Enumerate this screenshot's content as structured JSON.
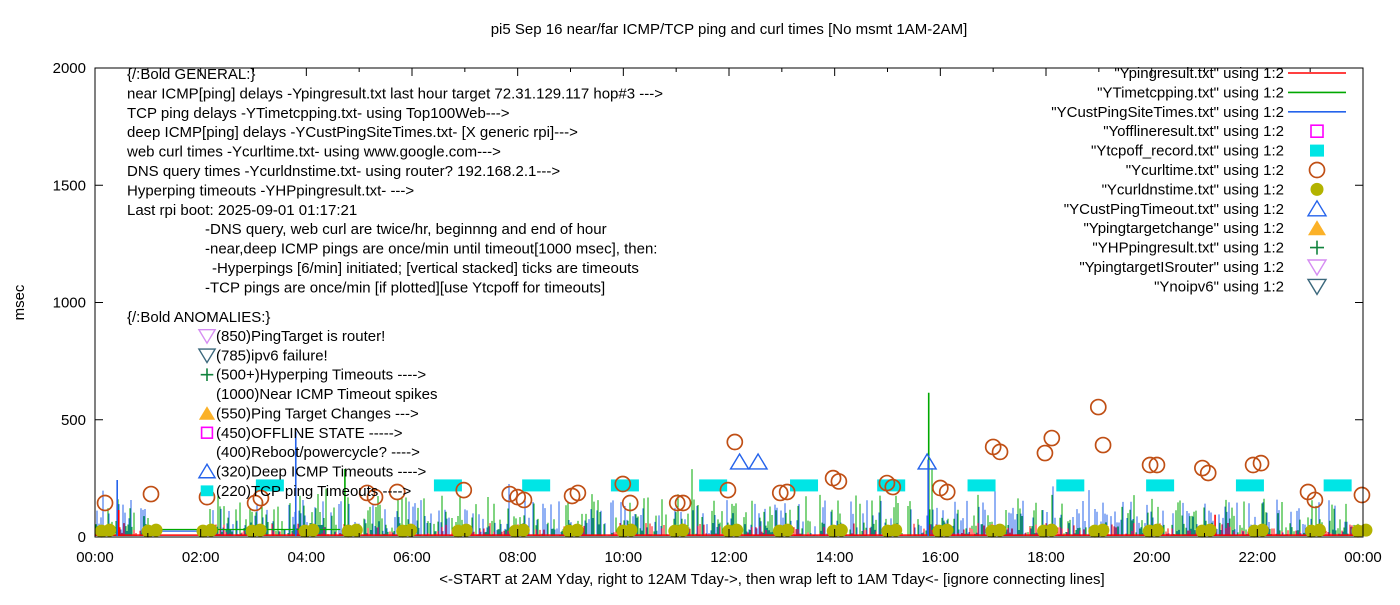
{
  "title": "pi5 Sep 16  near/far ICMP/TCP ping and curl times [No msmt 1AM-2AM]",
  "colors": {
    "red": "#ff0000",
    "green": "#00a800",
    "blue": "#2563eb",
    "magenta": "#ff00ff",
    "cyan": "#00e5e5",
    "darkorange": "#c04f15",
    "olive": "#b3b300",
    "orange": "#fbb128",
    "darkgreen": "#11833d",
    "violet": "#d58cf2",
    "navy": "#3b687c",
    "axis": "#000000"
  },
  "chart_data": {
    "type": "line",
    "title": "pi5 Sep 16  near/far ICMP/TCP ping and curl times [No msmt 1AM-2AM]",
    "ylabel": "msec",
    "xlabel": "<-START at 2AM Yday, right to 12AM Tday->, then wrap left to 1AM Tday<- [ignore connecting lines]",
    "ylim": [
      0,
      2000
    ],
    "yticks": [
      0,
      500,
      1000,
      1500,
      2000
    ],
    "xlim_hours": [
      0,
      24
    ],
    "xticks": [
      {
        "hour": 0,
        "label": "00:00"
      },
      {
        "hour": 2,
        "label": "02:00"
      },
      {
        "hour": 4,
        "label": "04:00"
      },
      {
        "hour": 6,
        "label": "06:00"
      },
      {
        "hour": 8,
        "label": "08:00"
      },
      {
        "hour": 10,
        "label": "10:00"
      },
      {
        "hour": 12,
        "label": "12:00"
      },
      {
        "hour": 14,
        "label": "14:00"
      },
      {
        "hour": 16,
        "label": "16:00"
      },
      {
        "hour": 18,
        "label": "18:00"
      },
      {
        "hour": 20,
        "label": "20:00"
      },
      {
        "hour": 22,
        "label": "22:00"
      },
      {
        "hour": 24,
        "label": "00:00"
      }
    ],
    "minor_xtick_every_hours": 1,
    "grid": false,
    "legend_position": "top-right",
    "legend": [
      {
        "label": "\"Ypingresult.txt\" using 1:2",
        "marker": "line",
        "color": "red"
      },
      {
        "label": "\"YTimetcpping.txt\" using 1:2",
        "marker": "line",
        "color": "green"
      },
      {
        "label": "\"YCustPingSiteTimes.txt\" using 1:2",
        "marker": "line",
        "color": "blue"
      },
      {
        "label": "\"Yofflineresult.txt\" using 1:2",
        "marker": "square-open",
        "color": "magenta"
      },
      {
        "label": "\"Ytcpoff_record.txt\" using 1:2",
        "marker": "square-fill",
        "color": "cyan"
      },
      {
        "label": "\"Ycurltime.txt\" using 1:2",
        "marker": "circle-open",
        "color": "darkorange"
      },
      {
        "label": "\"Ycurldnstime.txt\" using 1:2",
        "marker": "circle-fill",
        "color": "olive"
      },
      {
        "label": "\"YCustPingTimeout.txt\" using 1:2",
        "marker": "triangle-open",
        "color": "blue"
      },
      {
        "label": "\"Ypingtargetchange\" using 1:2",
        "marker": "triangle-fill",
        "color": "orange"
      },
      {
        "label": "\"YHPpingresult.txt\" using 1:2",
        "marker": "plus",
        "color": "darkgreen"
      },
      {
        "label": "\"YpingtargetISrouter\" using 1:2",
        "marker": "tri-down-open",
        "color": "violet"
      },
      {
        "label": "\"Ynoipv6\" using 1:2",
        "marker": "tri-down-open",
        "color": "navy"
      }
    ],
    "general_annotation": {
      "lines": [
        {
          "text": "{/:Bold GENERAL:}",
          "indent": 0
        },
        {
          "text": "near ICMP[ping] delays -Ypingresult.txt last hour target 72.31.129.117 hop#3 --->",
          "indent": 0
        },
        {
          "text": "TCP ping delays -YTimetcpping.txt- using Top100Web--->",
          "indent": 0
        },
        {
          "text": "deep ICMP[ping] delays -YCustPingSiteTimes.txt- [X generic rpi]--->",
          "indent": 0
        },
        {
          "text": "web curl times -Ycurltime.txt- using www.google.com--->",
          "indent": 0
        },
        {
          "text": "DNS query times -Ycurldnstime.txt- using router? 192.168.2.1--->",
          "indent": 0
        },
        {
          "text": "Hyperping timeouts -YHPpingresult.txt- --->",
          "indent": 0
        },
        {
          "text": "Last rpi boot: 2025-09-01 01:17:21",
          "indent": 0
        },
        {
          "text": "-DNS query, web curl are twice/hr, beginnng and end of hour",
          "indent": 1
        },
        {
          "text": "-near,deep ICMP pings are once/min until timeout[1000 msec], then:",
          "indent": 1
        },
        {
          "text": "-Hyperpings [6/min] initiated; [vertical stacked] ticks are timeouts",
          "indent": 2
        },
        {
          "text": "-TCP pings are once/min [if plotted][use Ytcpoff for timeouts]",
          "indent": 1
        }
      ]
    },
    "anomalies_annotation": {
      "title": "{/:Bold ANOMALIES:}",
      "rows": [
        {
          "marker": "tri-down-open",
          "color": "violet",
          "text": "(850)PingTarget is router!"
        },
        {
          "marker": "tri-down-open",
          "color": "navy",
          "text": "(785)ipv6 failure!"
        },
        {
          "marker": "plus",
          "color": "darkgreen",
          "text": "(500+)Hyperping Timeouts ---->"
        },
        {
          "marker": "none",
          "color": "",
          "text": "(1000)Near ICMP Timeout spikes"
        },
        {
          "marker": "triangle-fill",
          "color": "orange",
          "text": "(550)Ping Target Changes --->"
        },
        {
          "marker": "square-open",
          "color": "magenta",
          "text": "(450)OFFLINE STATE ----->"
        },
        {
          "marker": "none",
          "color": "",
          "text": "(400)Reboot/powercycle? ---->"
        },
        {
          "marker": "triangle-open",
          "color": "blue",
          "text": "(320)Deep ICMP Timeouts ---->"
        },
        {
          "marker": "square-fill",
          "color": "cyan",
          "text": "(220)TCP ping Timeouts ---->"
        }
      ]
    },
    "no_measurement_gap_hours": [
      1.19,
      2.14
    ],
    "series": {
      "curl_times_circles": {
        "legend": "Ycurltime.txt",
        "marker": "circle-open",
        "color": "darkorange",
        "points": [
          [
            0.19,
            145
          ],
          [
            1.06,
            183
          ],
          [
            2.12,
            170
          ],
          [
            3.03,
            145
          ],
          [
            3.14,
            166
          ],
          [
            5.15,
            188
          ],
          [
            5.3,
            170
          ],
          [
            5.72,
            192
          ],
          [
            6.98,
            200
          ],
          [
            7.85,
            183
          ],
          [
            8.0,
            170
          ],
          [
            8.12,
            158
          ],
          [
            9.03,
            175
          ],
          [
            9.14,
            188
          ],
          [
            9.99,
            226
          ],
          [
            10.13,
            145
          ],
          [
            11.02,
            145
          ],
          [
            11.13,
            145
          ],
          [
            11.98,
            200
          ],
          [
            12.11,
            405
          ],
          [
            12.97,
            188
          ],
          [
            13.1,
            192
          ],
          [
            13.97,
            251
          ],
          [
            14.08,
            237
          ],
          [
            14.99,
            230
          ],
          [
            15.1,
            213
          ],
          [
            16.0,
            209
          ],
          [
            16.13,
            192
          ],
          [
            17.0,
            384
          ],
          [
            17.13,
            363
          ],
          [
            17.98,
            358
          ],
          [
            18.11,
            422
          ],
          [
            18.99,
            554
          ],
          [
            19.08,
            392
          ],
          [
            19.97,
            307
          ],
          [
            20.1,
            307
          ],
          [
            20.96,
            294
          ],
          [
            21.07,
            273
          ],
          [
            21.92,
            307
          ],
          [
            22.07,
            315
          ],
          [
            22.96,
            192
          ],
          [
            23.09,
            158
          ],
          [
            23.98,
            179
          ]
        ]
      },
      "dns_times_dots": {
        "legend": "Ycurldnstime.txt",
        "marker": "circle-fill",
        "color": "olive",
        "value": 25,
        "hours": [
          0.2,
          1.08,
          2.12,
          3.05,
          4.05,
          4.87,
          5.9,
          6.95,
          8.03,
          9.05,
          10.07,
          11.05,
          12.07,
          13.03,
          14.05,
          15.08,
          16.05,
          17.05,
          18.03,
          19.0,
          20.03,
          21.03,
          22.02,
          23.1,
          23.98
        ]
      },
      "tcp_timeout_rects": {
        "legend": "Ytcpoff_record.txt",
        "marker": "square-fill",
        "color": "cyan",
        "value": 220,
        "hours": [
          3.31,
          6.68,
          8.35,
          10.03,
          11.7,
          13.42,
          15.07,
          16.78,
          18.46,
          20.16,
          21.86,
          23.52
        ]
      },
      "deep_icmp_timeout_triangles": {
        "legend": "YCustPingTimeout.txt",
        "marker": "triangle-open",
        "color": "blue",
        "points": [
          [
            12.2,
            320
          ],
          [
            12.55,
            320
          ],
          [
            15.75,
            320
          ]
        ]
      },
      "notable_spikes": [
        {
          "hour": 0.42,
          "value": 243,
          "color": "blue"
        },
        {
          "hour": 0.45,
          "value": 115,
          "color": "red"
        },
        {
          "hour": 3.8,
          "value": 450,
          "color": "blue"
        },
        {
          "hour": 4.73,
          "value": 290,
          "color": "green"
        },
        {
          "hour": 15.78,
          "value": 615,
          "color": "green"
        },
        {
          "hour": 15.77,
          "value": 330,
          "color": "blue"
        },
        {
          "hour": 21.2,
          "value": 95,
          "color": "red"
        }
      ],
      "baseline_noise": {
        "description": "dense near/deep/TCP ping grass 0-180 msec along baseline; red hugs ~8 msec",
        "colors": [
          "green",
          "blue",
          "red"
        ],
        "typical_range_msec": [
          0,
          180
        ],
        "red_baseline_msec": 8,
        "flat_gap_lines": [
          {
            "color": "green",
            "from_hour": 1.19,
            "to_hour": 4.64,
            "value": 32
          },
          {
            "color": "blue",
            "from_hour": 1.19,
            "to_hour": 2.14,
            "value": 25
          }
        ],
        "seed": 42
      }
    }
  }
}
